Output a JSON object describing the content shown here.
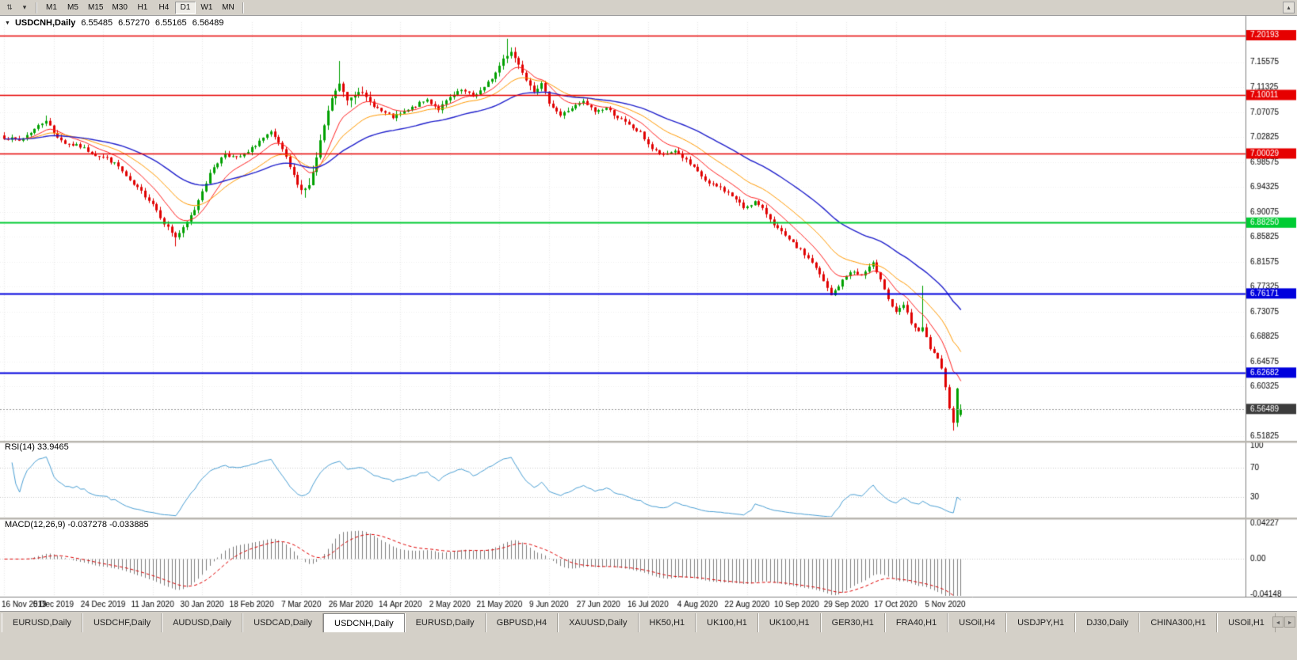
{
  "toolbar": {
    "left_icons": [
      {
        "name": "scroll-arrows-icon",
        "glyph": "⇅"
      },
      {
        "name": "dropdown-arrow-icon",
        "glyph": "▾"
      }
    ],
    "right_icon": {
      "glyph": "▴"
    },
    "timeframes": [
      {
        "label": "M1",
        "active": false
      },
      {
        "label": "M5",
        "active": false
      },
      {
        "label": "M15",
        "active": false
      },
      {
        "label": "M30",
        "active": false
      },
      {
        "label": "H1",
        "active": false
      },
      {
        "label": "H4",
        "active": false
      },
      {
        "label": "D1",
        "active": true
      },
      {
        "label": "W1",
        "active": false
      },
      {
        "label": "MN",
        "active": false
      }
    ]
  },
  "title": {
    "dropdown_glyph": "▼",
    "symbol": "USDCNH,Daily",
    "open": "6.55485",
    "high": "6.57270",
    "low": "6.55165",
    "close": "6.56489"
  },
  "indicators": {
    "rsi_label": "RSI(14) 33.9465",
    "macd_label": "MACD(12,26,9) -0.037278 -0.033885"
  },
  "tabs": {
    "scroll_left_glyph": "◂",
    "scroll_right_glyph": "▸",
    "items": [
      {
        "label": "EURUSD,Daily",
        "active": false
      },
      {
        "label": "USDCHF,Daily",
        "active": false
      },
      {
        "label": "AUDUSD,Daily",
        "active": false
      },
      {
        "label": "USDCAD,Daily",
        "active": false
      },
      {
        "label": "USDCNH,Daily",
        "active": true
      },
      {
        "label": "EURUSD,Daily",
        "active": false
      },
      {
        "label": "GBPUSD,H4",
        "active": false
      },
      {
        "label": "XAUUSD,Daily",
        "active": false
      },
      {
        "label": "HK50,H1",
        "active": false
      },
      {
        "label": "UK100,H1",
        "active": false
      },
      {
        "label": "UK100,H1",
        "active": false
      },
      {
        "label": "GER30,H1",
        "active": false
      },
      {
        "label": "FRA40,H1",
        "active": false
      },
      {
        "label": "USOil,H4",
        "active": false
      },
      {
        "label": "USDJPY,H1",
        "active": false
      },
      {
        "label": "DJ30,Daily",
        "active": false
      },
      {
        "label": "CHINA300,H1",
        "active": false
      },
      {
        "label": "USOil,H1",
        "active": false
      }
    ]
  },
  "chart_data": {
    "type": "candlestick",
    "symbol": "USDCNH",
    "timeframe": "Daily",
    "current_bar": {
      "open": 6.55485,
      "high": 6.5727,
      "low": 6.55165,
      "close": 6.56489
    },
    "price_axis": {
      "min": 6.512,
      "max": 7.2242,
      "tick_start": 6.51825,
      "tick_step": 0.0425,
      "tick_count": 16
    },
    "hlines": [
      {
        "price": 7.20193,
        "label": "7.20193",
        "color": "#e60000",
        "width": 1.4,
        "style": "solid"
      },
      {
        "price": 7.10011,
        "label": "7.10011",
        "color": "#e60000",
        "width": 1.4,
        "style": "solid"
      },
      {
        "price": 7.00029,
        "label": "7.00029",
        "color": "#e60000",
        "width": 1.4,
        "style": "solid"
      },
      {
        "price": 6.8825,
        "label": "6.88250",
        "color": "#00cc33",
        "width": 2,
        "style": "solid"
      },
      {
        "price": 6.76171,
        "label": "6.76171",
        "color": "#0000dd",
        "width": 2,
        "style": "solid"
      },
      {
        "price": 6.62682,
        "label": "6.62682",
        "color": "#0000dd",
        "width": 2,
        "style": "solid"
      },
      {
        "price": 6.56489,
        "label": "6.56489",
        "color": "#9a9a9a",
        "width": 1,
        "style": "dotted",
        "badge": "#3c3c3c"
      }
    ],
    "candles": {
      "count": 252,
      "seed": 7,
      "noise": 0.006,
      "wick": 0.006,
      "up_color": "#00A000",
      "down_color": "#E00000",
      "close_anchors": [
        [
          0,
          7.028
        ],
        [
          4,
          7.022
        ],
        [
          8,
          7.042
        ],
        [
          11,
          7.058
        ],
        [
          13,
          7.035
        ],
        [
          16,
          7.018
        ],
        [
          20,
          7.012
        ],
        [
          24,
          6.998
        ],
        [
          27,
          6.992
        ],
        [
          30,
          6.978
        ],
        [
          33,
          6.952
        ],
        [
          36,
          6.935
        ],
        [
          39,
          6.915
        ],
        [
          42,
          6.882
        ],
        [
          45,
          6.858
        ],
        [
          47,
          6.872
        ],
        [
          50,
          6.905
        ],
        [
          52,
          6.938
        ],
        [
          55,
          6.978
        ],
        [
          58,
          7.0
        ],
        [
          61,
          6.992
        ],
        [
          64,
          7.002
        ],
        [
          67,
          7.022
        ],
        [
          70,
          7.035
        ],
        [
          72,
          7.018
        ],
        [
          74,
          6.992
        ],
        [
          76,
          6.962
        ],
        [
          78,
          6.938
        ],
        [
          80,
          6.945
        ],
        [
          82,
          6.992
        ],
        [
          84,
          7.048
        ],
        [
          86,
          7.095
        ],
        [
          88,
          7.118
        ],
        [
          90,
          7.092
        ],
        [
          93,
          7.108
        ],
        [
          96,
          7.088
        ],
        [
          99,
          7.072
        ],
        [
          102,
          7.062
        ],
        [
          105,
          7.07
        ],
        [
          108,
          7.082
        ],
        [
          111,
          7.092
        ],
        [
          114,
          7.076
        ],
        [
          117,
          7.095
        ],
        [
          120,
          7.108
        ],
        [
          123,
          7.098
        ],
        [
          126,
          7.112
        ],
        [
          129,
          7.138
        ],
        [
          131,
          7.162
        ],
        [
          133,
          7.175
        ],
        [
          135,
          7.152
        ],
        [
          137,
          7.128
        ],
        [
          139,
          7.108
        ],
        [
          141,
          7.118
        ],
        [
          143,
          7.088
        ],
        [
          146,
          7.065
        ],
        [
          149,
          7.078
        ],
        [
          152,
          7.088
        ],
        [
          155,
          7.072
        ],
        [
          158,
          7.078
        ],
        [
          161,
          7.062
        ],
        [
          164,
          7.048
        ],
        [
          167,
          7.035
        ],
        [
          170,
          7.008
        ],
        [
          173,
          6.996
        ],
        [
          176,
          7.006
        ],
        [
          179,
          6.988
        ],
        [
          182,
          6.968
        ],
        [
          185,
          6.948
        ],
        [
          188,
          6.942
        ],
        [
          191,
          6.928
        ],
        [
          194,
          6.908
        ],
        [
          197,
          6.918
        ],
        [
          200,
          6.898
        ],
        [
          203,
          6.872
        ],
        [
          206,
          6.852
        ],
        [
          209,
          6.835
        ],
        [
          212,
          6.815
        ],
        [
          215,
          6.782
        ],
        [
          217,
          6.758
        ],
        [
          219,
          6.775
        ],
        [
          222,
          6.8
        ],
        [
          225,
          6.792
        ],
        [
          228,
          6.812
        ],
        [
          230,
          6.788
        ],
        [
          232,
          6.752
        ],
        [
          234,
          6.728
        ],
        [
          236,
          6.742
        ],
        [
          238,
          6.712
        ],
        [
          240,
          6.695
        ],
        [
          241,
          6.703
        ],
        [
          243,
          6.668
        ],
        [
          245,
          6.648
        ],
        [
          246,
          6.632
        ],
        [
          247,
          6.605
        ],
        [
          248,
          6.568
        ],
        [
          249,
          6.54
        ],
        [
          250,
          6.602
        ],
        [
          251,
          6.565
        ]
      ],
      "vol_ranges": [
        [
          40,
          50,
          1.5
        ],
        [
          78,
          96,
          2.0
        ],
        [
          128,
          140,
          1.4
        ],
        [
          236,
          251,
          1.3
        ]
      ],
      "forced": [
        {
          "i": 11,
          "high": 7.065
        },
        {
          "i": 79,
          "low": 6.925
        },
        {
          "i": 88,
          "high": 7.158
        },
        {
          "i": 132,
          "high": 7.196
        },
        {
          "i": 45,
          "low": 6.842
        },
        {
          "i": 241,
          "high": 6.775
        },
        {
          "i": 249,
          "low": 6.528
        }
      ],
      "last": {
        "open": 6.55485,
        "high": 6.5727,
        "low": 6.55165,
        "close": 6.56489
      }
    },
    "moving_averages": [
      {
        "period": 10,
        "color": "#ff2020",
        "width": 1
      },
      {
        "period": 21,
        "color": "#ff9900",
        "width": 1
      },
      {
        "period": 45,
        "color": "#2020cc",
        "width": 1.4
      }
    ],
    "dates": {
      "step": 13,
      "labels": [
        "16 Nov 2019",
        "5 Dec 2019",
        "24 Dec 2019",
        "11 Jan 2020",
        "30 Jan 2020",
        "18 Feb 2020",
        "7 Mar 2020",
        "26 Mar 2020",
        "14 Apr 2020",
        "2 May 2020",
        "21 May 2020",
        "9 Jun 2020",
        "27 Jun 2020",
        "16 Jul 2020",
        "4 Aug 2020",
        "22 Aug 2020",
        "10 Sep 2020",
        "29 Sep 2020",
        "17 Oct 2020",
        "5 Nov 2020"
      ]
    },
    "rsi": {
      "period": 14,
      "current": 33.9465,
      "levels": [
        100,
        70,
        30
      ],
      "axis_labels": [
        "100",
        "70",
        "30"
      ],
      "color": "#4a9fd4"
    },
    "macd": {
      "fast": 12,
      "slow": 26,
      "signal": 9,
      "current": -0.037278,
      "current_signal": -0.033885,
      "axis_labels": [
        "0.04227",
        "0.00",
        "-0.04148"
      ],
      "axis_max": 0.04227,
      "axis_min": -0.04148,
      "hist_color": "#808080",
      "signal_color": "#e00000"
    }
  }
}
